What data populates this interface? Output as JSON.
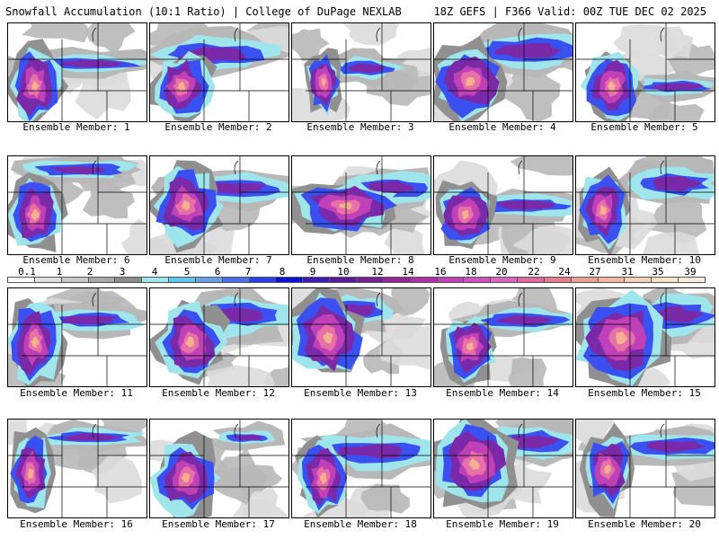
{
  "header": {
    "left": "Snowfall Accumulation (10:1 Ratio) | College of DuPage NEXLAB",
    "right": "18Z GEFS | F366 Valid: 00Z TUE DEC 02 2025"
  },
  "member_label_prefix": "Ensemble Member: ",
  "members": [
    1,
    2,
    3,
    4,
    5,
    6,
    7,
    8,
    9,
    10,
    11,
    12,
    13,
    14,
    15,
    16,
    17,
    18,
    19,
    20
  ],
  "colorbar": {
    "labels": [
      "0.1",
      "1",
      "2",
      "3",
      "4",
      "5",
      "6",
      "7",
      "8",
      "9",
      "10",
      "12",
      "14",
      "16",
      "18",
      "20",
      "22",
      "24",
      "27",
      "31",
      "35",
      "39"
    ],
    "colors": [
      "#ffffff",
      "#e0e0e0",
      "#c8c8c8",
      "#a8a8a8",
      "#8c8c8c",
      "#9ee6ec",
      "#5cc8f0",
      "#6aa0e8",
      "#4a6ef0",
      "#2a3ef0",
      "#1010d8",
      "#3a1cb8",
      "#5a1aa0",
      "#7a1e98",
      "#98289a",
      "#b030a8",
      "#c040b8",
      "#d050c0",
      "#e060c0",
      "#e06aa0",
      "#e87a90",
      "#f0a090",
      "#f4b8a0",
      "#f8d0b8",
      "#fae0c8",
      "#fcece0"
    ]
  },
  "colors": {
    "gray_light": "#dcdcdc",
    "gray_mid": "#b8b8b8",
    "gray_dark": "#909090",
    "cyan": "#9ee6ec",
    "blue": "#3a50f0",
    "purple": "#7a2aa8",
    "magenta": "#c040b8",
    "pink": "#e870a8",
    "peach": "#f4b090"
  }
}
